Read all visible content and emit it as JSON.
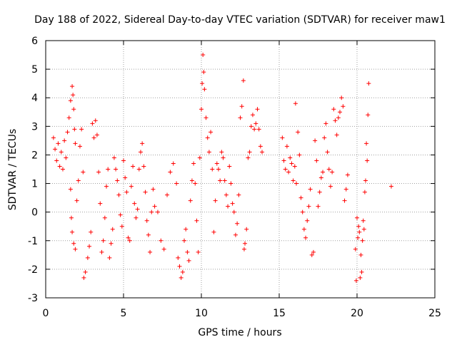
{
  "chart_data": {
    "type": "scatter",
    "title": "Day 188 of 2022, Sidereal Day-to-day VTEC variation (SDTVAR) for receiver maw1",
    "xlabel": "GPS time / hours",
    "ylabel": "SDTVAR / TECUs",
    "xlim": [
      0,
      25
    ],
    "ylim": [
      -3,
      6
    ],
    "x_ticks": [
      "0",
      "5",
      "10",
      "15",
      "20",
      "25"
    ],
    "y_ticks": [
      "-3",
      "-2",
      "-1",
      "0",
      "1",
      "2",
      "3",
      "4",
      "5",
      "6"
    ],
    "grid": true,
    "marker": "+",
    "colors": {
      "series": "#ff0000",
      "grid": "#a0a0a0",
      "frame": "#000000"
    },
    "series": [
      {
        "name": "maw1",
        "points": [
          [
            0.5,
            2.6
          ],
          [
            0.6,
            2.2
          ],
          [
            0.7,
            1.8
          ],
          [
            0.8,
            2.4
          ],
          [
            0.9,
            1.6
          ],
          [
            1.0,
            2.1
          ],
          [
            1.1,
            1.5
          ],
          [
            1.2,
            2.5
          ],
          [
            1.3,
            1.9
          ],
          [
            1.4,
            2.8
          ],
          [
            1.5,
            3.3
          ],
          [
            1.6,
            3.9
          ],
          [
            1.7,
            4.4
          ],
          [
            1.75,
            4.1
          ],
          [
            1.8,
            3.6
          ],
          [
            1.85,
            2.9
          ],
          [
            1.9,
            2.4
          ],
          [
            1.6,
            0.8
          ],
          [
            1.65,
            -0.2
          ],
          [
            1.7,
            -0.7
          ],
          [
            1.8,
            -1.1
          ],
          [
            1.9,
            -1.3
          ],
          [
            2.0,
            0.4
          ],
          [
            2.1,
            1.1
          ],
          [
            2.2,
            2.3
          ],
          [
            2.3,
            2.9
          ],
          [
            2.4,
            1.4
          ],
          [
            2.45,
            -2.3
          ],
          [
            2.55,
            -2.1
          ],
          [
            2.7,
            -1.6
          ],
          [
            2.8,
            -1.2
          ],
          [
            2.9,
            -0.7
          ],
          [
            3.0,
            3.1
          ],
          [
            3.1,
            2.6
          ],
          [
            3.2,
            3.2
          ],
          [
            3.3,
            2.7
          ],
          [
            3.4,
            1.4
          ],
          [
            3.5,
            0.3
          ],
          [
            3.6,
            -1.4
          ],
          [
            3.7,
            -1.0
          ],
          [
            3.8,
            -0.2
          ],
          [
            3.9,
            0.9
          ],
          [
            4.0,
            1.5
          ],
          [
            4.1,
            -1.6
          ],
          [
            4.2,
            -1.1
          ],
          [
            4.3,
            -0.6
          ],
          [
            4.4,
            1.9
          ],
          [
            4.5,
            1.5
          ],
          [
            4.6,
            1.1
          ],
          [
            4.7,
            0.6
          ],
          [
            4.8,
            -0.1
          ],
          [
            4.9,
            -0.5
          ],
          [
            5.0,
            1.8
          ],
          [
            5.1,
            1.2
          ],
          [
            5.2,
            0.7
          ],
          [
            5.3,
            -0.9
          ],
          [
            5.4,
            -1.0
          ],
          [
            5.5,
            0.9
          ],
          [
            5.6,
            1.6
          ],
          [
            5.7,
            0.3
          ],
          [
            5.8,
            -0.2
          ],
          [
            5.9,
            0.1
          ],
          [
            6.0,
            1.5
          ],
          [
            6.1,
            2.1
          ],
          [
            6.2,
            2.4
          ],
          [
            6.3,
            1.6
          ],
          [
            6.4,
            0.7
          ],
          [
            6.5,
            -0.3
          ],
          [
            6.6,
            -0.8
          ],
          [
            6.7,
            -1.4
          ],
          [
            6.8,
            0.0
          ],
          [
            6.9,
            0.8
          ],
          [
            7.0,
            0.2
          ],
          [
            7.2,
            0.0
          ],
          [
            7.4,
            -1.0
          ],
          [
            7.6,
            -1.3
          ],
          [
            7.8,
            0.6
          ],
          [
            8.0,
            1.4
          ],
          [
            8.2,
            1.7
          ],
          [
            8.4,
            1.0
          ],
          [
            8.5,
            -1.6
          ],
          [
            8.6,
            -1.9
          ],
          [
            8.7,
            -2.3
          ],
          [
            8.8,
            -2.1
          ],
          [
            8.9,
            -1.0
          ],
          [
            9.0,
            -0.6
          ],
          [
            9.1,
            -1.4
          ],
          [
            9.2,
            -1.7
          ],
          [
            9.3,
            0.4
          ],
          [
            9.4,
            1.1
          ],
          [
            9.5,
            1.7
          ],
          [
            9.6,
            1.0
          ],
          [
            9.7,
            -0.3
          ],
          [
            9.8,
            -1.4
          ],
          [
            9.9,
            1.9
          ],
          [
            10.0,
            3.6
          ],
          [
            10.05,
            4.5
          ],
          [
            10.1,
            5.5
          ],
          [
            10.15,
            4.9
          ],
          [
            10.2,
            4.3
          ],
          [
            10.3,
            3.3
          ],
          [
            10.4,
            2.6
          ],
          [
            10.5,
            2.1
          ],
          [
            10.6,
            2.8
          ],
          [
            10.7,
            1.5
          ],
          [
            10.8,
            -0.7
          ],
          [
            10.9,
            0.4
          ],
          [
            11.0,
            1.7
          ],
          [
            11.1,
            1.5
          ],
          [
            11.2,
            1.1
          ],
          [
            11.3,
            2.1
          ],
          [
            11.4,
            1.9
          ],
          [
            11.5,
            1.1
          ],
          [
            11.6,
            0.6
          ],
          [
            11.7,
            0.2
          ],
          [
            11.8,
            1.6
          ],
          [
            11.9,
            1.0
          ],
          [
            12.0,
            0.3
          ],
          [
            12.1,
            0.0
          ],
          [
            12.2,
            -0.8
          ],
          [
            12.3,
            -0.4
          ],
          [
            12.4,
            0.6
          ],
          [
            12.5,
            3.3
          ],
          [
            12.6,
            3.7
          ],
          [
            12.7,
            4.6
          ],
          [
            12.75,
            -1.3
          ],
          [
            12.8,
            -1.1
          ],
          [
            12.9,
            -0.6
          ],
          [
            13.0,
            1.9
          ],
          [
            13.1,
            2.1
          ],
          [
            13.2,
            3.0
          ],
          [
            13.3,
            3.4
          ],
          [
            13.4,
            2.9
          ],
          [
            13.5,
            3.1
          ],
          [
            13.6,
            3.6
          ],
          [
            13.7,
            2.9
          ],
          [
            13.8,
            2.3
          ],
          [
            13.9,
            2.1
          ],
          [
            15.2,
            2.6
          ],
          [
            15.3,
            1.8
          ],
          [
            15.4,
            1.5
          ],
          [
            15.5,
            2.3
          ],
          [
            15.6,
            1.4
          ],
          [
            15.7,
            1.9
          ],
          [
            15.8,
            1.7
          ],
          [
            15.9,
            1.1
          ],
          [
            16.0,
            1.6
          ],
          [
            16.05,
            3.8
          ],
          [
            16.1,
            1.0
          ],
          [
            16.2,
            2.8
          ],
          [
            16.3,
            2.0
          ],
          [
            16.4,
            0.5
          ],
          [
            16.5,
            0.0
          ],
          [
            16.6,
            -0.6
          ],
          [
            16.7,
            -0.9
          ],
          [
            16.8,
            -0.3
          ],
          [
            16.9,
            0.2
          ],
          [
            17.0,
            0.8
          ],
          [
            17.1,
            -1.5
          ],
          [
            17.2,
            -1.4
          ],
          [
            17.3,
            2.5
          ],
          [
            17.4,
            1.8
          ],
          [
            17.5,
            0.2
          ],
          [
            17.6,
            0.7
          ],
          [
            17.7,
            1.2
          ],
          [
            17.8,
            1.4
          ],
          [
            17.9,
            2.6
          ],
          [
            18.0,
            3.1
          ],
          [
            18.1,
            2.1
          ],
          [
            18.2,
            1.5
          ],
          [
            18.3,
            0.9
          ],
          [
            18.4,
            1.4
          ],
          [
            18.5,
            3.6
          ],
          [
            18.6,
            3.2
          ],
          [
            18.7,
            2.7
          ],
          [
            18.8,
            3.3
          ],
          [
            18.9,
            3.5
          ],
          [
            19.0,
            4.0
          ],
          [
            19.1,
            3.7
          ],
          [
            19.2,
            0.4
          ],
          [
            19.3,
            0.8
          ],
          [
            19.4,
            1.3
          ],
          [
            19.9,
            -1.3
          ],
          [
            19.95,
            -2.4
          ],
          [
            20.0,
            -0.2
          ],
          [
            20.05,
            -0.9
          ],
          [
            20.1,
            -0.5
          ],
          [
            20.15,
            -0.7
          ],
          [
            20.2,
            -2.3
          ],
          [
            20.25,
            -1.5
          ],
          [
            20.3,
            -2.1
          ],
          [
            20.35,
            -1.0
          ],
          [
            20.4,
            -0.3
          ],
          [
            20.45,
            -0.6
          ],
          [
            20.5,
            0.7
          ],
          [
            20.55,
            1.1
          ],
          [
            20.6,
            2.4
          ],
          [
            20.65,
            1.8
          ],
          [
            20.7,
            3.4
          ],
          [
            20.75,
            4.5
          ],
          [
            22.2,
            0.9
          ]
        ]
      }
    ]
  }
}
